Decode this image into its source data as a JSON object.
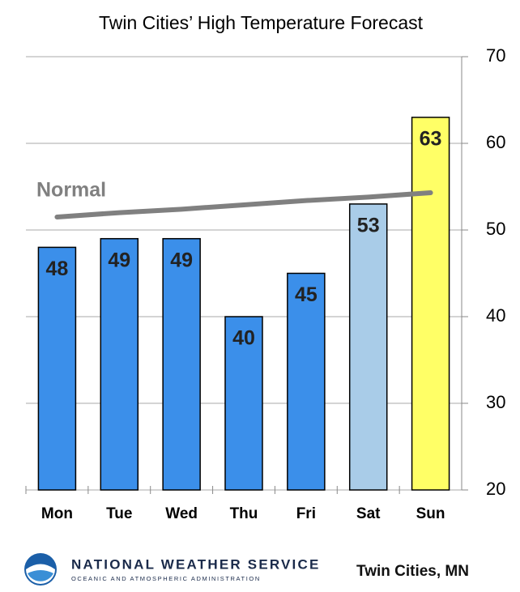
{
  "chart_data": {
    "type": "bar",
    "title": "Twin Cities’ High Temperature Forecast",
    "categories": [
      "Mon",
      "Tue",
      "Wed",
      "Thu",
      "Fri",
      "Sat",
      "Sun"
    ],
    "values": [
      48,
      49,
      49,
      40,
      45,
      53,
      63
    ],
    "colors": [
      "#3b8fea",
      "#3b8fea",
      "#3b8fea",
      "#3b8fea",
      "#3b8fea",
      "#a9cce8",
      "#ffff66"
    ],
    "ylim": [
      20,
      70
    ],
    "yticks": [
      20,
      30,
      40,
      50,
      60,
      70
    ],
    "grid": true,
    "normal": {
      "name": "Normal",
      "color": "#808080",
      "values": [
        51.5,
        52.0,
        52.4,
        52.9,
        53.4,
        53.8,
        54.3
      ]
    }
  },
  "footer": {
    "agency": "NATIONAL WEATHER SERVICE",
    "subagency": "OCEANIC AND ATMOSPHERIC ADMINISTRATION",
    "location": "Twin Cities, MN"
  }
}
